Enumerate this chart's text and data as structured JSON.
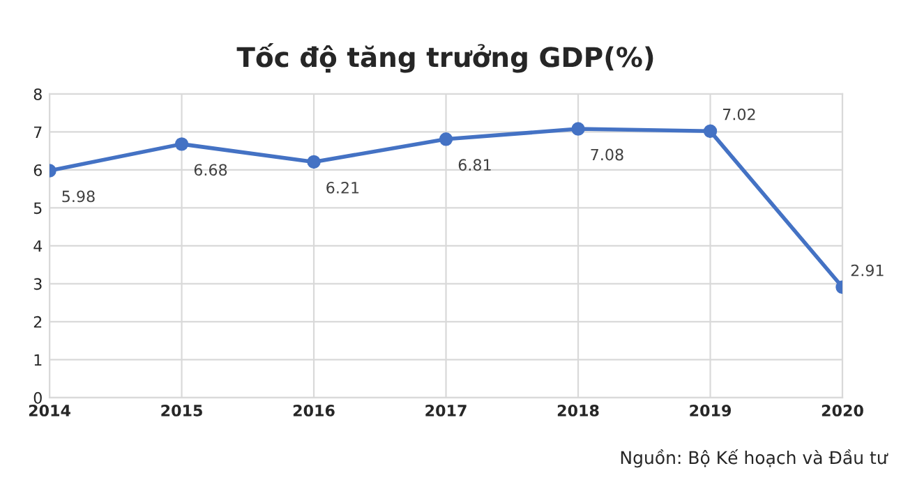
{
  "chart_data": {
    "type": "line",
    "title": "Tốc độ tăng trưởng GDP(%)",
    "categories": [
      "2014",
      "2015",
      "2016",
      "2017",
      "2018",
      "2019",
      "2020"
    ],
    "series": [
      {
        "color": "#4472c4",
        "values": [
          5.98,
          6.68,
          6.21,
          6.81,
          7.08,
          7.02,
          2.91
        ]
      }
    ],
    "ylim": [
      0,
      8
    ],
    "yticks": [
      0,
      1,
      2,
      3,
      4,
      5,
      6,
      7,
      8
    ],
    "grid": true,
    "marker": "circle",
    "line_style": "solid",
    "data_labels": true,
    "annotations": [
      "Nguồn: Bộ Kế hoạch và Đầu tư"
    ]
  }
}
